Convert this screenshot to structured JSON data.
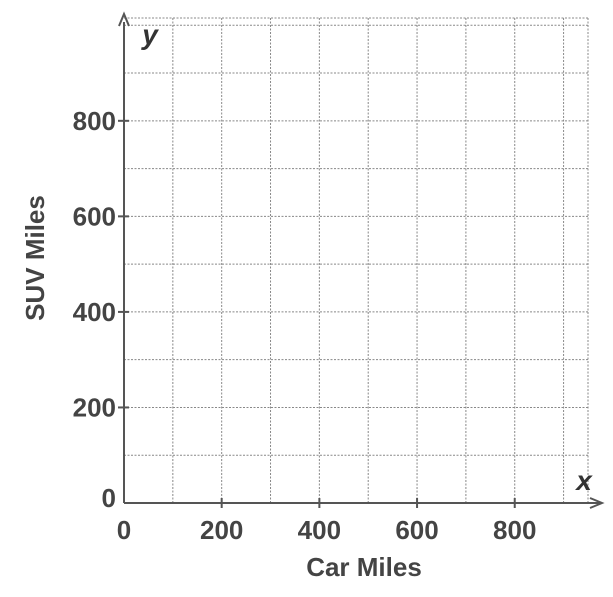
{
  "chart_data": {
    "type": "scatter",
    "xlabel": "Car Miles",
    "ylabel": "SUV Miles",
    "x_axis_variable": "x",
    "y_axis_variable": "y",
    "xlim": [
      0,
      1000
    ],
    "ylim": [
      0,
      1000
    ],
    "grid": true,
    "grid_step": 100,
    "x_ticks": [
      0,
      200,
      400,
      600,
      800
    ],
    "y_ticks": [
      0,
      200,
      400,
      600,
      800
    ],
    "x_tick_labels": [
      "0",
      "200",
      "400",
      "600",
      "800"
    ],
    "y_tick_labels": [
      "0",
      "200",
      "400",
      "600",
      "800"
    ],
    "series": [],
    "colors": {
      "axis": "#555555",
      "grid": "#888888",
      "text": "#444444"
    }
  }
}
